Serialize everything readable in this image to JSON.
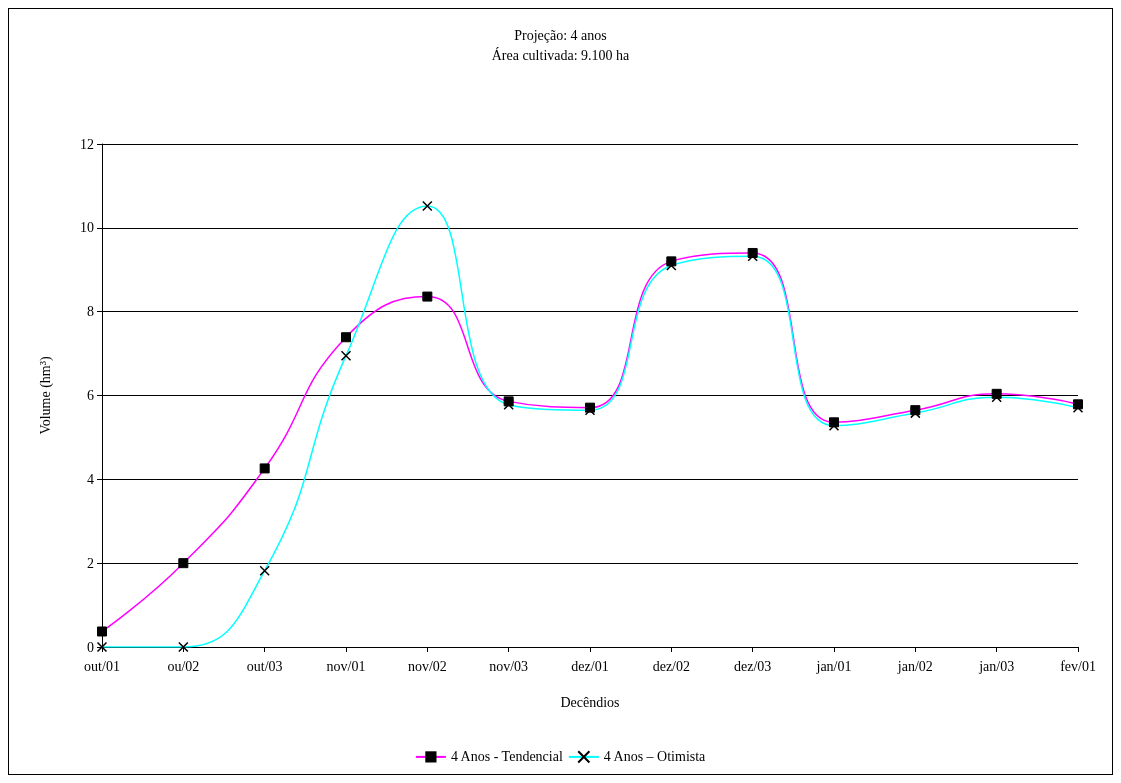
{
  "chart_data": {
    "type": "line",
    "title": "Projeção: 4 anos",
    "subtitle": "Área cultivada: 9.100 ha",
    "xlabel": "Decêndios",
    "ylabel": "Volume (hm³)",
    "categories": [
      "out/01",
      "ou/02",
      "out/03",
      "nov/01",
      "nov/02",
      "nov/03",
      "dez/01",
      "dez/02",
      "dez/03",
      "jan/01",
      "jan/02",
      "jan/03",
      "fev/01"
    ],
    "series": [
      {
        "name": "4 Anos - Tendencial",
        "color": "#ff00ff",
        "marker": "square",
        "values": [
          0.37,
          2.0,
          4.26,
          7.39,
          8.36,
          5.86,
          5.71,
          9.2,
          9.4,
          5.36,
          5.65,
          6.04,
          5.79
        ]
      },
      {
        "name": "4 Anos – Otimista",
        "color": "#00ffff",
        "marker": "cross",
        "values": [
          0,
          0,
          1.82,
          6.95,
          10.52,
          5.78,
          5.65,
          9.1,
          9.32,
          5.28,
          5.58,
          5.96,
          5.71
        ]
      }
    ],
    "ylim": [
      0,
      12
    ],
    "yticks": [
      0,
      2,
      4,
      6,
      8,
      10,
      12
    ],
    "grid": "y",
    "legend": "bottom"
  }
}
